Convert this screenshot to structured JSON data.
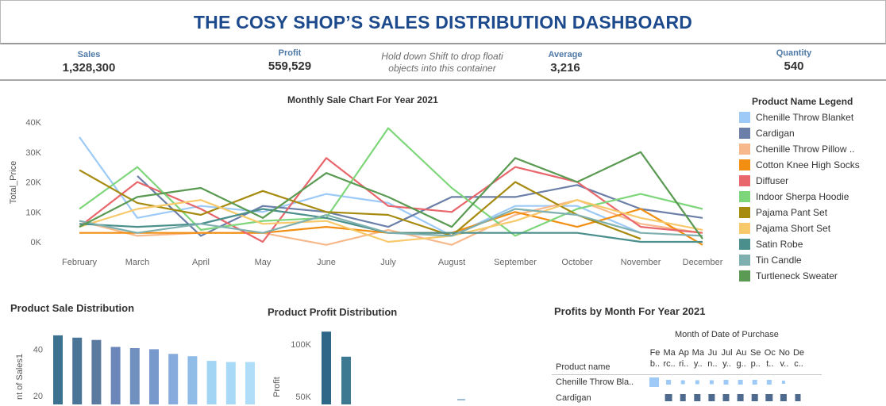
{
  "header": {
    "title": "THE COSY SHOP’S SALES DISTRIBUTION DASHBOARD"
  },
  "kpis": {
    "sales": {
      "label": "Sales",
      "value": "1,328,300"
    },
    "profit": {
      "label": "Profit",
      "value": "559,529"
    },
    "note_line1": "Hold down Shift to drop floati",
    "note_line2": "objects into this container",
    "average": {
      "label": "Average",
      "value": "3,216"
    },
    "quantity": {
      "label": "Quantity",
      "value": "540"
    }
  },
  "line_chart": {
    "title": "Monthly Sale Chart For Year 2021",
    "ylabel": "Total_Price"
  },
  "legend": {
    "title": "Product Name Legend",
    "items": [
      {
        "name": "Chenille Throw Blanket",
        "color": "#9dcaf7"
      },
      {
        "name": "Cardigan",
        "color": "#6b7fa8"
      },
      {
        "name": "Chenille Throw Pillow ..",
        "color": "#f7b98b"
      },
      {
        "name": "Cotton Knee High Socks",
        "color": "#f28e12"
      },
      {
        "name": "Diffuser",
        "color": "#e8666c"
      },
      {
        "name": "Indoor Sherpa Hoodie",
        "color": "#7ed67a"
      },
      {
        "name": "Pajama Pant Set",
        "color": "#a68b10"
      },
      {
        "name": "Pajama Short Set",
        "color": "#f7c96a"
      },
      {
        "name": "Satin Robe",
        "color": "#4a8f8c"
      },
      {
        "name": "Tin Candle",
        "color": "#7fb0b0"
      },
      {
        "name": "Turtleneck Sweater",
        "color": "#5a9a52"
      }
    ]
  },
  "sale_dist": {
    "title": "Product Sale Distribution",
    "ylabel": "nt of Sales1"
  },
  "profit_dist": {
    "title": "Product Profit Distribution",
    "ylabel": "Profit"
  },
  "profit_month": {
    "title": "Profits by Month For Year 2021",
    "subtitle": "Month of Date of Purchase",
    "row_header": "Product name",
    "month_cols": [
      [
        "Fe",
        "b.."
      ],
      [
        "Ma",
        "rc.."
      ],
      [
        "Ap",
        "ri.."
      ],
      [
        "Ma",
        "y.."
      ],
      [
        "Ju",
        "n.."
      ],
      [
        "Jul",
        "y.."
      ],
      [
        "Au",
        "g.."
      ],
      [
        "Se",
        "p.."
      ],
      [
        "Oc",
        "t.."
      ],
      [
        "No",
        "v.."
      ],
      [
        "De",
        "c.."
      ]
    ],
    "rows": [
      "Chenille Throw Bla..",
      "Cardigan"
    ]
  },
  "chart_data": [
    {
      "type": "line",
      "title": "Monthly Sale Chart For Year 2021",
      "ylabel": "Total_Price",
      "x": [
        "February",
        "March",
        "April",
        "May",
        "June",
        "July",
        "August",
        "September",
        "October",
        "November",
        "December"
      ],
      "ylim": [
        0,
        45000
      ],
      "yticks": [
        "0K",
        "10K",
        "20K",
        "30K",
        "40K"
      ],
      "series": [
        {
          "name": "Chenille Throw Blanket",
          "color": "#9dcaf7",
          "values": [
            35000,
            8000,
            12000,
            10000,
            16000,
            13000,
            2000,
            12000,
            12000,
            3000,
            null
          ]
        },
        {
          "name": "Cardigan",
          "color": "#6b7fa8",
          "values": [
            null,
            22000,
            2000,
            12000,
            10000,
            5000,
            15000,
            15000,
            19000,
            11000,
            8000
          ]
        },
        {
          "name": "Chenille Throw Pillow ..",
          "color": "#f7b98b",
          "values": [
            7000,
            2000,
            3000,
            3000,
            -1000,
            4000,
            -1000,
            9000,
            14000,
            6000,
            3000
          ]
        },
        {
          "name": "Cotton Knee High Socks",
          "color": "#f28e12",
          "values": [
            3000,
            3000,
            3000,
            3000,
            5000,
            3000,
            3000,
            10000,
            5000,
            11000,
            -1000
          ]
        },
        {
          "name": "Diffuser",
          "color": "#e8666c",
          "values": [
            5000,
            20000,
            11000,
            0,
            28000,
            12000,
            10000,
            25000,
            20000,
            5000,
            3000
          ]
        },
        {
          "name": "Indoor Sherpa Hoodie",
          "color": "#7ed67a",
          "values": [
            11000,
            25000,
            4000,
            7000,
            8000,
            38000,
            18000,
            2000,
            11000,
            16000,
            11000
          ]
        },
        {
          "name": "Pajama Pant Set",
          "color": "#a68b10",
          "values": [
            24000,
            13000,
            9000,
            17000,
            10000,
            9000,
            2000,
            20000,
            9000,
            1000,
            null
          ]
        },
        {
          "name": "Pajama Short Set",
          "color": "#f7c96a",
          "values": [
            5000,
            11000,
            14000,
            6000,
            7000,
            0,
            2000,
            7000,
            14000,
            8000,
            4000
          ]
        },
        {
          "name": "Satin Robe",
          "color": "#4a8f8c",
          "values": [
            6000,
            5000,
            6000,
            11000,
            8000,
            3000,
            3000,
            3000,
            3000,
            0,
            0
          ]
        },
        {
          "name": "Tin Candle",
          "color": "#7fb0b0",
          "values": [
            7000,
            3000,
            6000,
            3000,
            9000,
            3000,
            2000,
            11000,
            9000,
            3000,
            2000
          ]
        },
        {
          "name": "Turtleneck Sweater",
          "color": "#5a9a52",
          "values": [
            5000,
            15000,
            18000,
            8000,
            23000,
            15000,
            5000,
            28000,
            20000,
            30000,
            1000
          ]
        }
      ]
    },
    {
      "type": "bar",
      "title": "Product Sale Distribution",
      "ylabel": "nt of Sales1",
      "yticks": [
        "20",
        "40"
      ],
      "ylim": [
        20,
        48
      ],
      "values": [
        46,
        45,
        44,
        41,
        40.5,
        40,
        38,
        37,
        35,
        34.5,
        34.5
      ],
      "colors": [
        "#3d7190",
        "#4b7597",
        "#5a7aa0",
        "#6b86b8",
        "#7090c0",
        "#7899cc",
        "#86abdc",
        "#8fbde8",
        "#a2d4f4",
        "#a8daf8",
        "#b0def9"
      ]
    },
    {
      "type": "bar",
      "title": "Product Profit Distribution",
      "ylabel": "Profit",
      "yticks": [
        "50K",
        "100K"
      ],
      "ylim": [
        0,
        120000
      ],
      "values": [
        112000,
        88000
      ],
      "colors": [
        "#2f6788",
        "#3d7a92"
      ]
    }
  ]
}
